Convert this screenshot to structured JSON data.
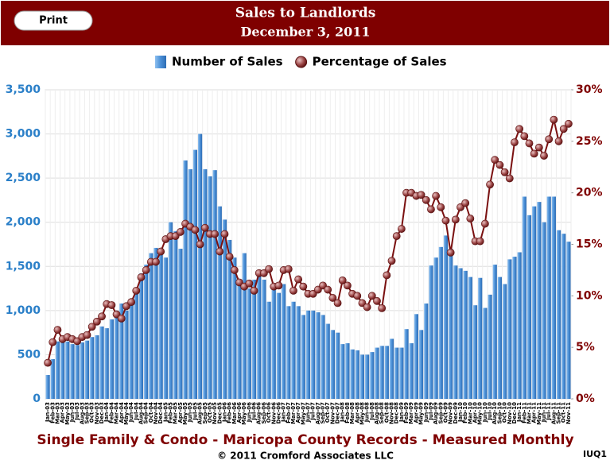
{
  "header": {
    "button": "Print"
  },
  "chart_data": {
    "type": "bar-line",
    "title": "Sales to Landlords",
    "subtitle": "December 3, 2011",
    "footer": "Single Family & Condo - Maricopa County Records - Measured Monthly",
    "copyright": "© 2011 Cromford Associates LLC",
    "code": "IUQ1",
    "categories": [
      "Jan-03",
      "Feb-03",
      "Mar-03",
      "Apr-03",
      "May-03",
      "Jun-03",
      "Jul-03",
      "Aug-03",
      "Sep-03",
      "Oct-03",
      "Nov-03",
      "Dec-03",
      "Jan-04",
      "Feb-04",
      "Mar-04",
      "Apr-04",
      "May-04",
      "Jun-04",
      "Jul-04",
      "Aug-04",
      "Sep-04",
      "Oct-04",
      "Nov-04",
      "Dec-04",
      "Jan-05",
      "Feb-05",
      "Mar-05",
      "Apr-05",
      "May-05",
      "Jun-05",
      "Jul-05",
      "Aug-05",
      "Sep-05",
      "Oct-05",
      "Nov-05",
      "Dec-05",
      "Jan-06",
      "Feb-06",
      "Mar-06",
      "Apr-06",
      "May-06",
      "Jun-06",
      "Jul-06",
      "Aug-06",
      "Sep-06",
      "Oct-06",
      "Nov-06",
      "Dec-06",
      "Jan-07",
      "Feb-07",
      "Mar-07",
      "Apr-07",
      "May-07",
      "Jun-07",
      "Jul-07",
      "Aug-07",
      "Sep-07",
      "Oct-07",
      "Nov-07",
      "Dec-07",
      "Jan-08",
      "Feb-08",
      "Mar-08",
      "Apr-08",
      "May-08",
      "Jun-08",
      "Jul-08",
      "Aug-08",
      "Sep-08",
      "Oct-08",
      "Nov-08",
      "Dec-08",
      "Jan-09",
      "Feb-09",
      "Mar-09",
      "Apr-09",
      "May-09",
      "Jun-09",
      "Jul-09",
      "Aug-09",
      "Sep-09",
      "Oct-09",
      "Nov-09",
      "Dec-09",
      "Jan-10",
      "Feb-10",
      "Mar-10",
      "Apr-10",
      "May-10",
      "Jun-10",
      "Jul-10",
      "Aug-10",
      "Sep-10",
      "Oct-10",
      "Nov-10",
      "Dec-10",
      "Jan-11",
      "Feb-11",
      "Mar-11",
      "Apr-11",
      "May-11",
      "Jun-11",
      "Jul-11",
      "Aug-11",
      "Sep-11",
      "Oct-11",
      "Nov-11"
    ],
    "series": [
      {
        "name": "Number of Sales",
        "type": "bar",
        "color": "#4a8fd6",
        "values": [
          270,
          450,
          650,
          640,
          650,
          620,
          610,
          640,
          660,
          700,
          720,
          820,
          800,
          900,
          1000,
          1080,
          1000,
          1100,
          1200,
          1420,
          1520,
          1650,
          1710,
          1700,
          1600,
          2000,
          1900,
          1700,
          2700,
          2600,
          2820,
          3000,
          2600,
          2520,
          2590,
          2180,
          2030,
          1800,
          1600,
          1330,
          1650,
          1250,
          1350,
          1400,
          1350,
          1100,
          1300,
          1200,
          1300,
          1050,
          1100,
          1050,
          950,
          1000,
          1000,
          980,
          950,
          850,
          780,
          750,
          620,
          630,
          560,
          550,
          500,
          500,
          530,
          580,
          600,
          600,
          680,
          580,
          580,
          790,
          630,
          960,
          780,
          1080,
          1510,
          1600,
          1720,
          1850,
          1700,
          1510,
          1480,
          1450,
          1380,
          1060,
          1370,
          1030,
          1180,
          1520,
          1380,
          1300,
          1580,
          1610,
          1660,
          2290,
          2080,
          2180,
          2230,
          2000,
          2290,
          2290,
          1910,
          1870,
          1780
        ]
      },
      {
        "name": "Percentage of Sales",
        "type": "line",
        "axis": "y2",
        "color": "#7a1010",
        "values": [
          3.5,
          5.5,
          6.7,
          5.8,
          6.0,
          5.8,
          5.6,
          6.0,
          6.2,
          7.0,
          7.5,
          8.0,
          9.2,
          9.1,
          8.2,
          7.8,
          9.0,
          9.4,
          10.5,
          11.8,
          12.5,
          13.3,
          13.3,
          14.3,
          15.5,
          15.8,
          15.8,
          16.2,
          17.0,
          16.7,
          16.4,
          15.0,
          16.6,
          16.0,
          16.0,
          14.3,
          16.0,
          13.8,
          12.5,
          11.3,
          10.9,
          11.2,
          10.5,
          12.2,
          12.2,
          12.6,
          10.9,
          11.0,
          12.5,
          12.6,
          10.5,
          11.6,
          10.9,
          10.2,
          10.2,
          10.6,
          11.0,
          10.6,
          9.8,
          9.3,
          11.5,
          11.0,
          10.2,
          10.0,
          9.3,
          8.9,
          10.0,
          9.5,
          8.8,
          12.0,
          13.4,
          15.8,
          16.5,
          20.0,
          20.0,
          19.7,
          19.8,
          19.3,
          18.4,
          19.7,
          18.6,
          17.3,
          14.2,
          17.4,
          18.6,
          19.0,
          17.5,
          15.3,
          15.3,
          17.0,
          20.8,
          23.2,
          22.7,
          22.0,
          21.4,
          24.9,
          26.2,
          25.5,
          24.8,
          23.8,
          24.4,
          23.6,
          25.2,
          27.1,
          25.0,
          26.2,
          26.7
        ]
      }
    ],
    "ylim": [
      0,
      3500
    ],
    "yticks": [
      0,
      500,
      {
        "value": 1000,
        "label": "1,000"
      },
      {
        "value": 1500,
        "label": "1,500"
      },
      {
        "value": 2000,
        "label": "2,000"
      },
      {
        "value": 2500,
        "label": "2,500"
      },
      {
        "value": 3000,
        "label": "3,000"
      },
      {
        "value": 3500,
        "label": "3,500"
      }
    ],
    "y2lim": [
      0,
      30
    ],
    "y2ticks": [
      {
        "value": 0,
        "label": "0%"
      },
      {
        "value": 5,
        "label": "5%"
      },
      {
        "value": 10,
        "label": "10%"
      },
      {
        "value": 15,
        "label": "15%"
      },
      {
        "value": 20,
        "label": "20%"
      },
      {
        "value": 25,
        "label": "25%"
      },
      {
        "value": 30,
        "label": "30%"
      }
    ],
    "grid": true
  }
}
